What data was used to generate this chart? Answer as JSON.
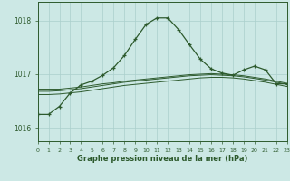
{
  "title": "Graphe pression niveau de la mer (hPa)",
  "background_color": "#cce8e5",
  "grid_color": "#aacfcc",
  "line_color_main": "#2d5a2d",
  "xlim": [
    0,
    23
  ],
  "ylim": [
    1015.75,
    1018.35
  ],
  "yticks": [
    1016,
    1017,
    1018
  ],
  "series_main": [
    1016.25,
    1016.25,
    1016.4,
    1016.65,
    1016.8,
    1016.87,
    1016.98,
    1017.12,
    1017.35,
    1017.65,
    1017.93,
    1018.05,
    1018.05,
    1017.83,
    1017.55,
    1017.28,
    1017.1,
    1017.02,
    1016.98,
    1017.08,
    1017.15,
    1017.08,
    1016.82,
    1016.82
  ],
  "series_b": [
    1016.72,
    1016.72,
    1016.72,
    1016.74,
    1016.76,
    1016.79,
    1016.82,
    1016.84,
    1016.87,
    1016.89,
    1016.91,
    1016.93,
    1016.95,
    1016.97,
    1016.99,
    1017.0,
    1017.01,
    1017.0,
    1016.99,
    1016.97,
    1016.94,
    1016.91,
    1016.87,
    1016.83
  ],
  "series_c": [
    1016.68,
    1016.68,
    1016.69,
    1016.71,
    1016.73,
    1016.76,
    1016.79,
    1016.82,
    1016.85,
    1016.87,
    1016.89,
    1016.91,
    1016.93,
    1016.95,
    1016.97,
    1016.98,
    1016.99,
    1016.98,
    1016.97,
    1016.95,
    1016.92,
    1016.89,
    1016.85,
    1016.81
  ],
  "series_d": [
    1016.62,
    1016.62,
    1016.63,
    1016.65,
    1016.67,
    1016.7,
    1016.73,
    1016.76,
    1016.79,
    1016.81,
    1016.83,
    1016.85,
    1016.87,
    1016.89,
    1016.91,
    1016.93,
    1016.94,
    1016.94,
    1016.93,
    1016.91,
    1016.88,
    1016.85,
    1016.81,
    1016.77
  ]
}
